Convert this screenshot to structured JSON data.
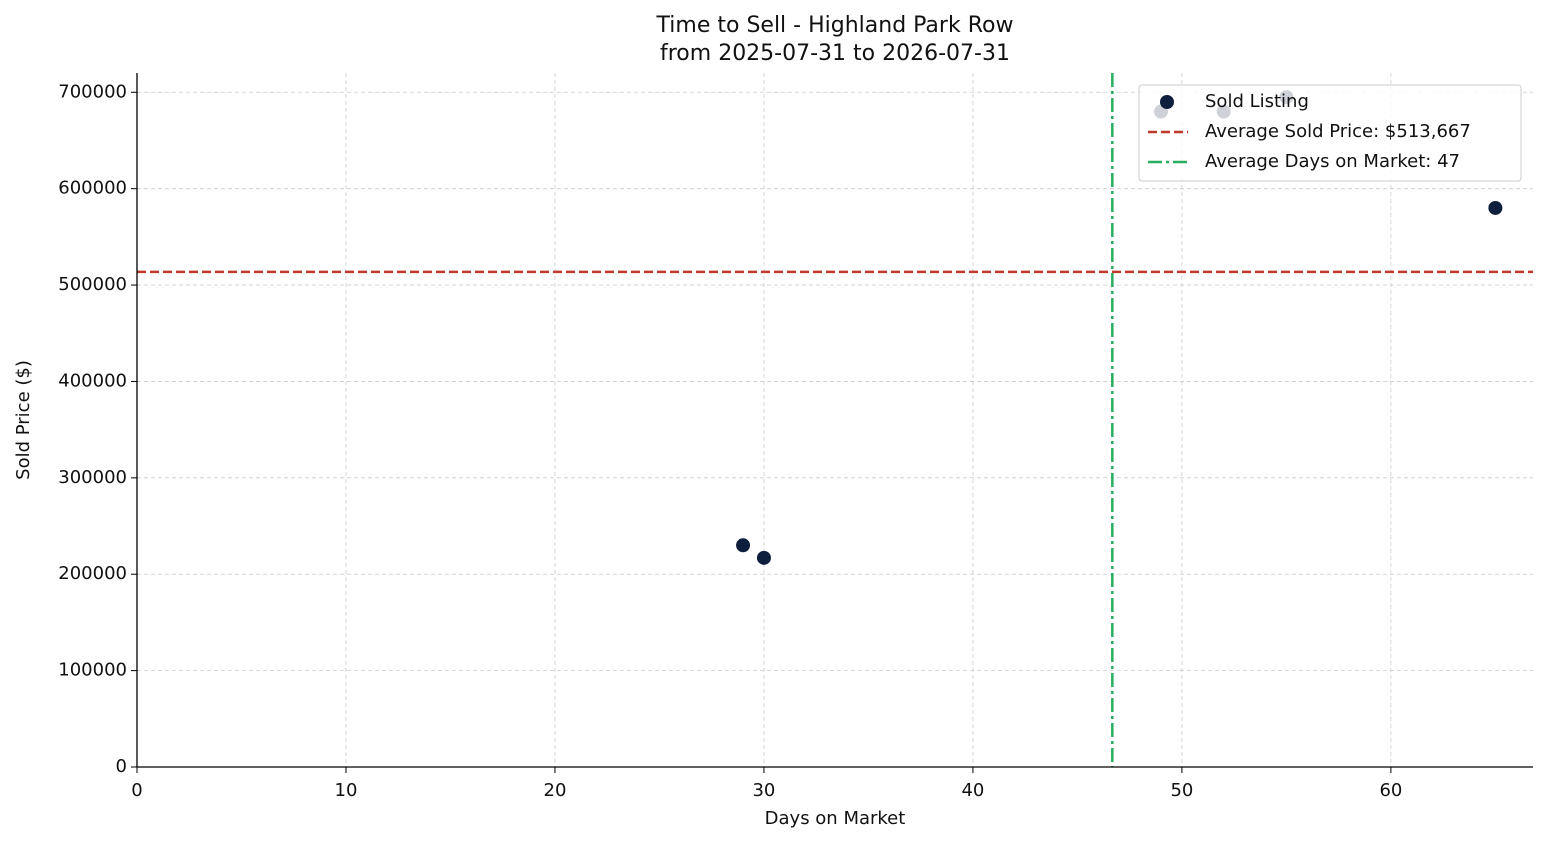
{
  "chart_data": {
    "type": "scatter",
    "title": "Time to Sell - Highland Park Row",
    "subtitle": "from 2025-07-31 to 2026-07-31",
    "x_label": "Days on Market",
    "y_label": "Sold Price ($)",
    "x": [
      29,
      30,
      49,
      52,
      55,
      65
    ],
    "series": [
      {
        "name": "Sold Listing",
        "color": "#0d1f3c",
        "values": [
          230000,
          217000,
          680000,
          680000,
          695000,
          580000
        ]
      }
    ],
    "hlines": [
      {
        "value": 513667,
        "label": "Average Sold Price: $513,667",
        "color": "#c0392b"
      }
    ],
    "vlines": [
      {
        "value": 46.67,
        "label": "Average Days on Market: 47",
        "color": "#27ae60"
      }
    ],
    "xlim": [
      0,
      66.8
    ],
    "xticks": [
      0,
      10,
      20,
      30,
      40,
      50,
      60
    ],
    "ylim": [
      0,
      720000
    ],
    "yticks": [
      0,
      100000,
      200000,
      300000,
      400000,
      500000,
      600000,
      700000
    ],
    "grid": true,
    "legend": "upper right"
  }
}
